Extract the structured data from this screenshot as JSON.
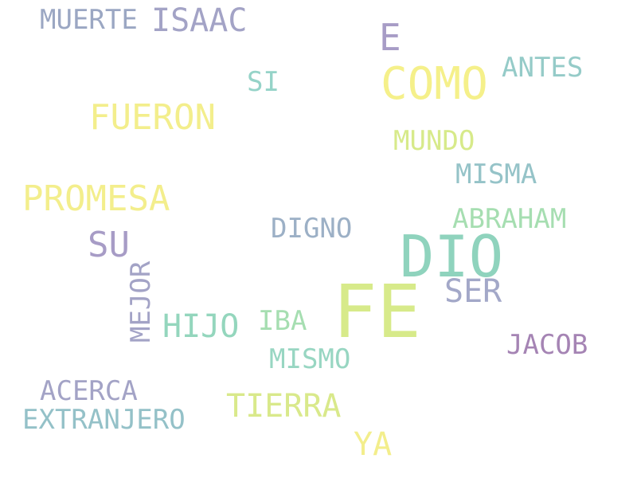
{
  "background": "#ffffff",
  "words": [
    {
      "id": "fe",
      "text": "FE",
      "color": "#d7ea8a"
    },
    {
      "id": "dio",
      "text": "DIO",
      "color": "#8fd3bd"
    },
    {
      "id": "como",
      "text": "COMO",
      "color": "#f5f08a"
    },
    {
      "id": "promesa",
      "text": "PROMESA",
      "color": "#f3ee8c"
    },
    {
      "id": "fueron",
      "text": "FUERON",
      "color": "#f3ee8c"
    },
    {
      "id": "isaac",
      "text": "ISAAC",
      "color": "#a3a3c6"
    },
    {
      "id": "su",
      "text": "SU",
      "color": "#a79cc6"
    },
    {
      "id": "e",
      "text": "E",
      "color": "#a79cc6"
    },
    {
      "id": "tierra",
      "text": "TIERRA",
      "color": "#d9e98b"
    },
    {
      "id": "hijo",
      "text": "HIJO",
      "color": "#94d6bd"
    },
    {
      "id": "ser",
      "text": "SER",
      "color": "#a3a8c8"
    },
    {
      "id": "ya",
      "text": "YA",
      "color": "#f3ee8c"
    },
    {
      "id": "abraham",
      "text": "ABRAHAM",
      "color": "#a6deb1"
    },
    {
      "id": "antes",
      "text": "ANTES",
      "color": "#95cbc8"
    },
    {
      "id": "misma",
      "text": "MISMA",
      "color": "#95c3c8"
    },
    {
      "id": "muerte",
      "text": "MUERTE",
      "color": "#9ba7c3"
    },
    {
      "id": "extranjero",
      "text": "EXTRANJERO",
      "color": "#94c1c8"
    },
    {
      "id": "acerca",
      "text": "ACERCA",
      "color": "#a3a3c6"
    },
    {
      "id": "mismo",
      "text": "MISMO",
      "color": "#98d6c2"
    },
    {
      "id": "digno",
      "text": "DIGNO",
      "color": "#9cb0c6"
    },
    {
      "id": "jacob",
      "text": "JACOB",
      "color": "#a584b4"
    },
    {
      "id": "mundo",
      "text": "MUNDO",
      "color": "#d7ea8a"
    },
    {
      "id": "iba",
      "text": "IBA",
      "color": "#a6deb1"
    },
    {
      "id": "si",
      "text": "SI",
      "color": "#95d3c8"
    },
    {
      "id": "mejor",
      "text": "MEJOR",
      "color": "#a3a3c6"
    }
  ]
}
